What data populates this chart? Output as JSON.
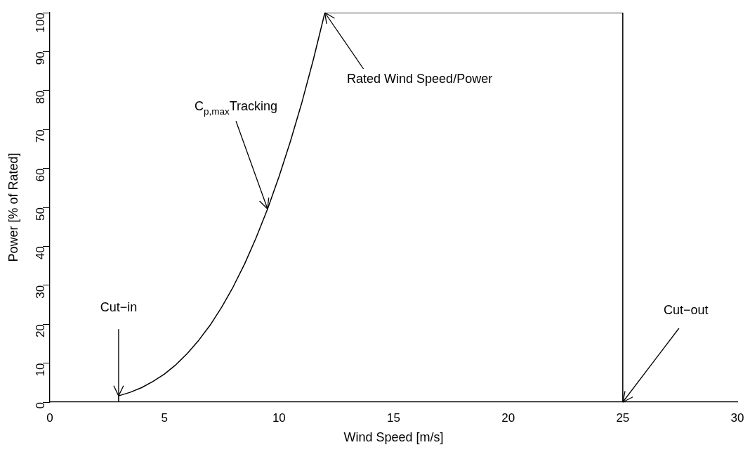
{
  "chart_data": {
    "type": "line",
    "xlabel": "Wind Speed [m/s]",
    "ylabel": "Power [% of Rated]",
    "x": [
      0,
      3,
      3,
      3.5,
      4,
      4.5,
      5,
      5.5,
      6,
      6.5,
      7,
      7.5,
      8,
      8.5,
      9,
      9.5,
      10,
      10.5,
      11,
      11.5,
      12,
      25,
      25,
      30
    ],
    "values": [
      0,
      0,
      1.6,
      2.5,
      3.7,
      5.3,
      7.2,
      9.6,
      12.5,
      15.9,
      19.8,
      24.4,
      29.6,
      35.5,
      42.2,
      49.6,
      57.9,
      67,
      77,
      88,
      100,
      100,
      0,
      0
    ],
    "color": "#000000",
    "marker": "none",
    "line_style": "solid",
    "grid": false,
    "legend": false,
    "xlim": [
      0,
      30
    ],
    "xticks": [
      0,
      5,
      10,
      15,
      20,
      25,
      30
    ],
    "ylim": [
      0,
      100
    ],
    "yticks": [
      0,
      10,
      20,
      30,
      40,
      50,
      60,
      70,
      80,
      90,
      100
    ],
    "annotations": [
      {
        "text": "Cut−in",
        "x": 3,
        "y": 1.6
      },
      {
        "text": "C$_{p,max}$Tracking",
        "x": 9.5,
        "y": 49.6
      },
      {
        "text": "Rated Wind Speed/Power",
        "x": 12,
        "y": 100
      },
      {
        "text": "Cut−out",
        "x": 25,
        "y": 0
      }
    ]
  }
}
